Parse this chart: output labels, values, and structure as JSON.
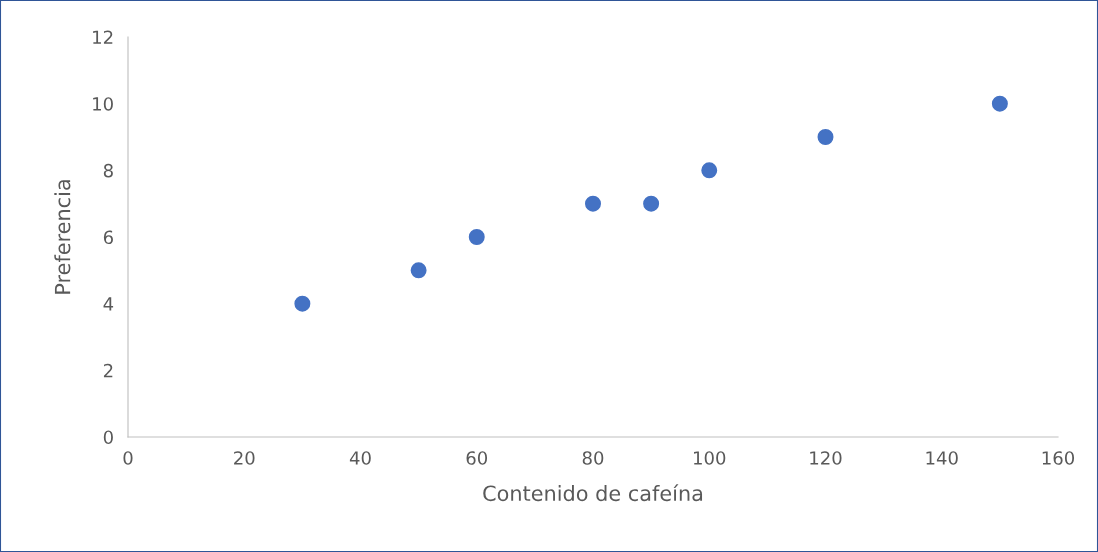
{
  "chart_data": {
    "type": "scatter",
    "xlabel": "Contenido de cafeína",
    "ylabel": "Preferencia",
    "x": [
      30,
      50,
      60,
      80,
      90,
      100,
      120,
      150
    ],
    "series": [
      {
        "color": "#4472c4",
        "values": [
          4,
          5,
          6,
          7,
          7,
          8,
          9,
          10
        ]
      }
    ],
    "xlim": [
      0,
      160
    ],
    "xticks": [
      0,
      20,
      40,
      60,
      80,
      100,
      120,
      140,
      160
    ],
    "ylim": [
      0,
      12
    ],
    "yticks": [
      0,
      2,
      4,
      6,
      8,
      10,
      12
    ],
    "grid": false,
    "marker": "circle"
  }
}
